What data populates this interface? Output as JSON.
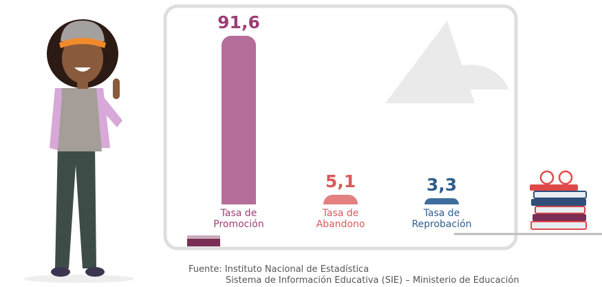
{
  "chart_data": {
    "type": "bar",
    "categories": [
      "Tasa de Promoción",
      "Tasa de Abandono",
      "Tasa de Reprobación"
    ],
    "values": [
      91.6,
      5.1,
      3.3
    ],
    "value_labels": [
      "91,6",
      "5,1",
      "3,3"
    ],
    "colors": [
      "#b56d9a",
      "#e38080",
      "#3f6e9e"
    ],
    "label_colors": [
      "#9b3f75",
      "#d9595b",
      "#2f5d8c"
    ],
    "source": [
      "Fuente: Instituto Nacional de Estadística",
      "Sistema de Información Educativa (SIE) – Ministerio de Educación"
    ]
  }
}
